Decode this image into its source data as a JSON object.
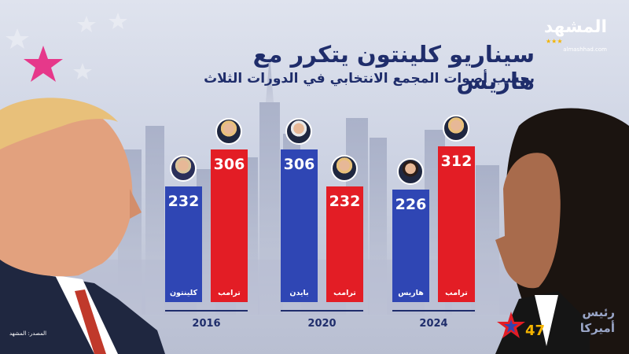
{
  "header": {
    "title": "سيناريو كلينتون يتكرر مع هاريس",
    "subtitle": "بحسب أصوات المجمع الانتخابي في الدورات الثلاث"
  },
  "logo": {
    "name": "المشهد",
    "url": "almashhad.com"
  },
  "footer": {
    "source": "المصدر: المشهد",
    "brand_text_top": "رئيس",
    "brand_text_bottom": "أميركا",
    "brand_number": "47"
  },
  "colors": {
    "democrat": "#2f46b4",
    "republican": "#e31d25",
    "title": "#1f2d6b",
    "accent_star": "#e6388a",
    "gold": "#f4b400"
  },
  "chart_data": {
    "type": "bar",
    "title": "سيناريو كلينتون يتكرر مع هاريس",
    "subtitle": "بحسب أصوات المجمع الانتخابي في الدورات الثلاث",
    "categories": [
      "2016",
      "2020",
      "2024"
    ],
    "ylim": [
      0,
      330
    ],
    "groups": [
      {
        "year": "2016",
        "bars": [
          {
            "candidate": "كلينتون",
            "value": 232,
            "party": "democrat",
            "avatar": "clinton-photo"
          },
          {
            "candidate": "ترامب",
            "value": 306,
            "party": "republican",
            "avatar": "trump-photo"
          }
        ]
      },
      {
        "year": "2020",
        "bars": [
          {
            "candidate": "بايدن",
            "value": 306,
            "party": "democrat",
            "avatar": "biden-photo"
          },
          {
            "candidate": "ترامب",
            "value": 232,
            "party": "republican",
            "avatar": "trump-photo"
          }
        ]
      },
      {
        "year": "2024",
        "bars": [
          {
            "candidate": "هاريس",
            "value": 226,
            "party": "democrat",
            "avatar": "harris-photo"
          },
          {
            "candidate": "ترامب",
            "value": 312,
            "party": "republican",
            "avatar": "trump-photo"
          }
        ]
      }
    ]
  }
}
